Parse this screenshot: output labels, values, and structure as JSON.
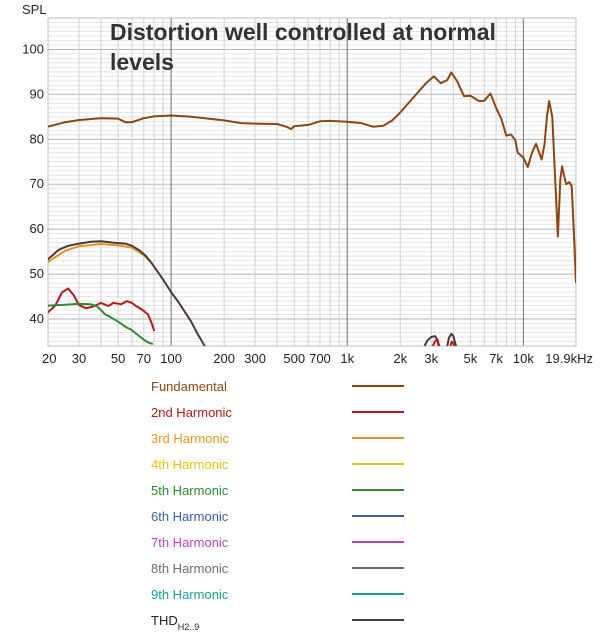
{
  "chart_data": {
    "type": "line",
    "title": "Distortion well controlled at normal levels",
    "title_lines": [
      "Distortion well controlled at normal",
      "levels"
    ],
    "ylabel": "SPL",
    "xlabel": "",
    "xscale": "log",
    "xlim": [
      20,
      19900
    ],
    "ylim": [
      34,
      107
    ],
    "grid": true,
    "legend_placement": "bottom",
    "yticks": [
      40,
      50,
      60,
      70,
      80,
      90,
      100
    ],
    "xticks": [
      {
        "value": 20,
        "label": "20"
      },
      {
        "value": 30,
        "label": "30"
      },
      {
        "value": 50,
        "label": "50"
      },
      {
        "value": 70,
        "label": "70"
      },
      {
        "value": 100,
        "label": "100"
      },
      {
        "value": 200,
        "label": "200"
      },
      {
        "value": 300,
        "label": "300"
      },
      {
        "value": 500,
        "label": "500"
      },
      {
        "value": 700,
        "label": "700"
      },
      {
        "value": 1000,
        "label": "1k"
      },
      {
        "value": 2000,
        "label": "2k"
      },
      {
        "value": 3000,
        "label": "3k"
      },
      {
        "value": 5000,
        "label": "5k"
      },
      {
        "value": 7000,
        "label": "7k"
      },
      {
        "value": 10000,
        "label": "10k"
      },
      {
        "value": 19900,
        "label": "19.9kHz"
      }
    ],
    "series": [
      {
        "name": "Fundamental",
        "color": "#8b4513",
        "points": [
          [
            20,
            82.8
          ],
          [
            25,
            83.8
          ],
          [
            30,
            84.3
          ],
          [
            40,
            84.7
          ],
          [
            50,
            84.6
          ],
          [
            55,
            83.8
          ],
          [
            60,
            83.8
          ],
          [
            70,
            84.7
          ],
          [
            80,
            85.1
          ],
          [
            100,
            85.3
          ],
          [
            130,
            85.0
          ],
          [
            200,
            84.2
          ],
          [
            250,
            83.6
          ],
          [
            300,
            83.5
          ],
          [
            400,
            83.4
          ],
          [
            450,
            82.8
          ],
          [
            480,
            82.3
          ],
          [
            500,
            82.9
          ],
          [
            600,
            83.2
          ],
          [
            700,
            84.0
          ],
          [
            800,
            84.1
          ],
          [
            1000,
            83.9
          ],
          [
            1200,
            83.6
          ],
          [
            1400,
            82.8
          ],
          [
            1600,
            83.0
          ],
          [
            1800,
            84.2
          ],
          [
            2000,
            86.0
          ],
          [
            2400,
            89.5
          ],
          [
            2800,
            92.5
          ],
          [
            3100,
            94.0
          ],
          [
            3400,
            92.5
          ],
          [
            3700,
            93.2
          ],
          [
            3900,
            94.9
          ],
          [
            4200,
            93.0
          ],
          [
            4600,
            89.6
          ],
          [
            5000,
            89.7
          ],
          [
            5600,
            88.5
          ],
          [
            6000,
            88.6
          ],
          [
            6500,
            90.2
          ],
          [
            7000,
            87.0
          ],
          [
            7500,
            84.5
          ],
          [
            8000,
            80.8
          ],
          [
            8500,
            81.1
          ],
          [
            9000,
            79.8
          ],
          [
            9300,
            77.0
          ],
          [
            10000,
            75.9
          ],
          [
            10600,
            73.8
          ],
          [
            11200,
            77.0
          ],
          [
            11800,
            79.0
          ],
          [
            12300,
            77.0
          ],
          [
            12700,
            75.5
          ],
          [
            13200,
            79.0
          ],
          [
            13600,
            85.0
          ],
          [
            14000,
            88.5
          ],
          [
            14600,
            85.0
          ],
          [
            15200,
            70.0
          ],
          [
            15700,
            58.4
          ],
          [
            16200,
            71.0
          ],
          [
            16600,
            74.0
          ],
          [
            17000,
            72.0
          ],
          [
            17500,
            70.0
          ],
          [
            18200,
            70.5
          ],
          [
            18800,
            69.6
          ],
          [
            19300,
            60.0
          ],
          [
            19900,
            48.2
          ]
        ]
      },
      {
        "name": "2nd Harmonic",
        "color": "#b21b1b",
        "points": [
          [
            20,
            41.5
          ],
          [
            22,
            43.0
          ],
          [
            24,
            45.9
          ],
          [
            26,
            46.8
          ],
          [
            28,
            45.3
          ],
          [
            30,
            43.1
          ],
          [
            33,
            42.4
          ],
          [
            36,
            42.8
          ],
          [
            40,
            43.6
          ],
          [
            44,
            42.9
          ],
          [
            47,
            43.6
          ],
          [
            52,
            43.3
          ],
          [
            56,
            44.0
          ],
          [
            60,
            43.6
          ],
          [
            63,
            42.9
          ],
          [
            66,
            42.5
          ],
          [
            70,
            41.8
          ],
          [
            74,
            41.0
          ],
          [
            78,
            38.8
          ],
          [
            80,
            37.5
          ]
        ]
      },
      {
        "name": "3rd Harmonic",
        "color": "#e8931f",
        "points": [
          [
            20,
            52.7
          ],
          [
            25,
            55.2
          ],
          [
            30,
            56.2
          ],
          [
            40,
            56.7
          ],
          [
            50,
            56.4
          ],
          [
            60,
            55.9
          ],
          [
            70,
            54.2
          ],
          [
            75,
            53.0
          ]
        ]
      },
      {
        "name": "4th Harmonic",
        "color": "#e6c20f",
        "points": []
      },
      {
        "name": "5th Harmonic",
        "color": "#2d8c2d",
        "points": [
          [
            20,
            43.0
          ],
          [
            25,
            43.2
          ],
          [
            30,
            43.4
          ],
          [
            35,
            43.3
          ],
          [
            38,
            42.8
          ],
          [
            40,
            42.0
          ],
          [
            42,
            41.1
          ],
          [
            45,
            40.5
          ],
          [
            50,
            39.4
          ],
          [
            55,
            38.3
          ],
          [
            60,
            37.5
          ],
          [
            66,
            36.2
          ],
          [
            70,
            35.4
          ],
          [
            74,
            34.8
          ],
          [
            78,
            34.5
          ]
        ]
      },
      {
        "name": "6th Harmonic",
        "color": "#3c5ea6",
        "points": []
      },
      {
        "name": "7th Harmonic",
        "color": "#c03fc0",
        "points": []
      },
      {
        "name": "8th Harmonic",
        "color": "#6b6b6b",
        "points": []
      },
      {
        "name": "9th Harmonic",
        "color": "#1a9c9c",
        "points": []
      },
      {
        "name": "THD",
        "legend_label": "THD",
        "legend_sub": "H2..9",
        "color": "#4a3a38",
        "points": [
          [
            20,
            53.3
          ],
          [
            23,
            55.4
          ],
          [
            26,
            56.3
          ],
          [
            30,
            56.8
          ],
          [
            35,
            57.2
          ],
          [
            40,
            57.3
          ],
          [
            45,
            57.1
          ],
          [
            50,
            56.9
          ],
          [
            55,
            56.8
          ],
          [
            60,
            56.3
          ],
          [
            66,
            55.3
          ],
          [
            72,
            54.0
          ],
          [
            78,
            52.3
          ],
          [
            84,
            50.5
          ],
          [
            90,
            48.8
          ],
          [
            100,
            46.0
          ],
          [
            110,
            43.8
          ],
          [
            120,
            41.5
          ],
          [
            130,
            39.4
          ],
          [
            140,
            37.0
          ],
          [
            150,
            35.0
          ],
          [
            155,
            34.0
          ]
        ]
      }
    ],
    "extra_segments": [
      {
        "series": "THD",
        "color": "#4a3a38",
        "points": [
          [
            2750,
            34.0
          ],
          [
            2850,
            35.2
          ],
          [
            3000,
            36.0
          ],
          [
            3150,
            36.2
          ],
          [
            3250,
            35.3
          ],
          [
            3300,
            34.0
          ]
        ]
      },
      {
        "series": "THD",
        "color": "#4a3a38",
        "points": [
          [
            3700,
            34.0
          ],
          [
            3780,
            35.8
          ],
          [
            3900,
            36.7
          ],
          [
            4000,
            36.3
          ],
          [
            4080,
            35.0
          ],
          [
            4150,
            34.0
          ]
        ]
      },
      {
        "series": "2nd Harmonic",
        "color": "#b21b1b",
        "points": [
          [
            3060,
            34.0
          ],
          [
            3150,
            35.0
          ],
          [
            3250,
            35.5
          ],
          [
            3300,
            34.5
          ],
          [
            3340,
            34.0
          ]
        ]
      },
      {
        "series": "2nd Harmonic",
        "color": "#b21b1b",
        "points": [
          [
            3850,
            34.0
          ],
          [
            3920,
            35.0
          ],
          [
            3990,
            34.7
          ],
          [
            4050,
            34.0
          ]
        ]
      }
    ]
  }
}
